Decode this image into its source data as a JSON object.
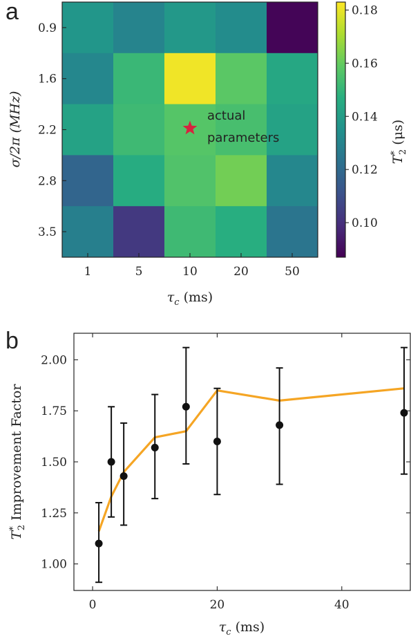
{
  "chart_data": [
    {
      "type": "heatmap",
      "panel_label": "a",
      "xlabel_sym": "τ",
      "xlabel_sub": "c",
      "xlabel_unit": " (ms)",
      "ylabel": "σ/2π (MHz)",
      "x_categories": [
        "1",
        "5",
        "10",
        "20",
        "50"
      ],
      "y_categories": [
        "0.9",
        "1.6",
        "2.2",
        "2.8",
        "3.5"
      ],
      "values": [
        [
          0.137,
          0.13,
          0.138,
          0.133,
          0.088
        ],
        [
          0.131,
          0.151,
          0.181,
          0.158,
          0.144
        ],
        [
          0.142,
          0.152,
          0.157,
          0.154,
          0.142
        ],
        [
          0.118,
          0.146,
          0.156,
          0.162,
          0.131
        ],
        [
          0.128,
          0.103,
          0.152,
          0.147,
          0.124
        ]
      ],
      "colormap": "viridis",
      "vmin": 0.087,
      "vmax": 0.183,
      "colorbar_ticks": [
        "0.10",
        "0.12",
        "0.14",
        "0.16",
        "0.18"
      ],
      "colorbar_label_sym": "T",
      "colorbar_label_sup": "*",
      "colorbar_label_sub": "2",
      "colorbar_label_unit": " (μs)",
      "annotation": {
        "lines": [
          "actual",
          "parameters"
        ],
        "marker": "star",
        "marker_color": "#d6243f",
        "at": {
          "x": "10",
          "y": "2.2"
        }
      }
    },
    {
      "type": "scatter",
      "panel_label": "b",
      "xlabel_sym": "τ",
      "xlabel_sub": "c",
      "xlabel_unit": " (ms)",
      "ylabel_sym": "T",
      "ylabel_sup": "*",
      "ylabel_sub": "2",
      "ylabel_text": " Improvement Factor",
      "xlim": [
        -3,
        51
      ],
      "ylim": [
        0.87,
        2.13
      ],
      "x_ticks": [
        "0",
        "20",
        "40"
      ],
      "y_ticks": [
        "1.00",
        "1.25",
        "1.50",
        "1.75",
        "2.00"
      ],
      "points": [
        {
          "x": 1,
          "y": 1.1,
          "yerr_low": 0.91,
          "yerr_high": 1.3
        },
        {
          "x": 3,
          "y": 1.5,
          "yerr_low": 1.23,
          "yerr_high": 1.77
        },
        {
          "x": 5,
          "y": 1.43,
          "yerr_low": 1.19,
          "yerr_high": 1.69
        },
        {
          "x": 10,
          "y": 1.57,
          "yerr_low": 1.32,
          "yerr_high": 1.83
        },
        {
          "x": 15,
          "y": 1.77,
          "yerr_low": 1.49,
          "yerr_high": 2.06
        },
        {
          "x": 20,
          "y": 1.6,
          "yerr_low": 1.34,
          "yerr_high": 1.86
        },
        {
          "x": 30,
          "y": 1.68,
          "yerr_low": 1.39,
          "yerr_high": 1.96
        },
        {
          "x": 50,
          "y": 1.74,
          "yerr_low": 1.44,
          "yerr_high": 2.06
        }
      ],
      "point_color": "#111111",
      "line": {
        "color": "#f5a524",
        "x": [
          1,
          3,
          5,
          10,
          15,
          20,
          30,
          50
        ],
        "y": [
          1.16,
          1.33,
          1.45,
          1.62,
          1.65,
          1.85,
          1.8,
          1.86
        ]
      }
    }
  ]
}
